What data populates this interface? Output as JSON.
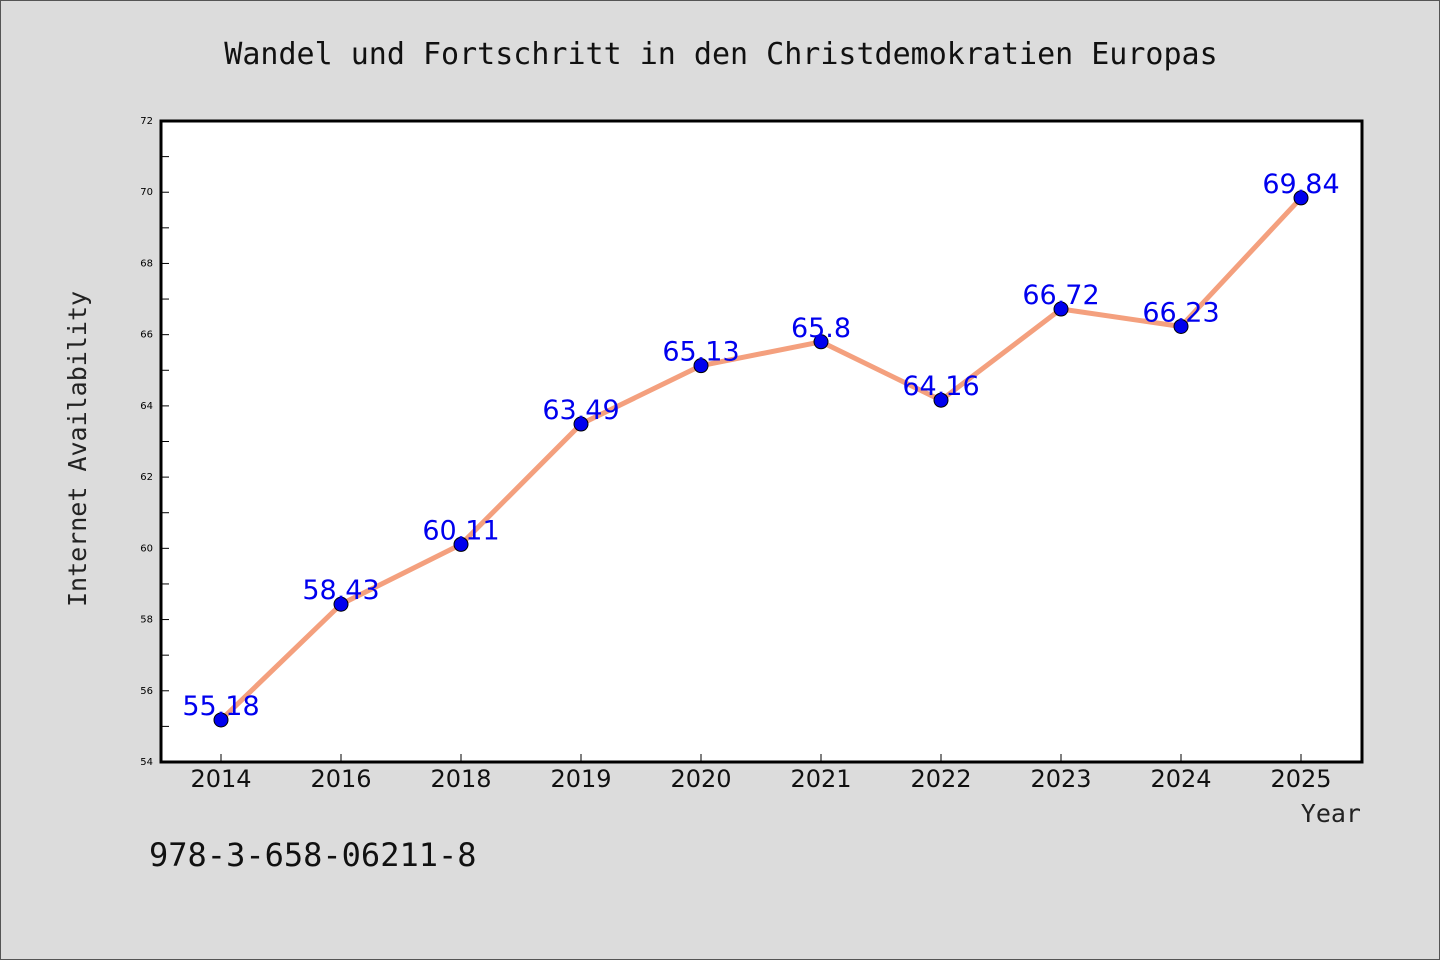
{
  "chart_data": {
    "type": "line",
    "title": "Wandel und Fortschritt in den Christdemokratien Europas",
    "xlabel": "Year",
    "ylabel": "Internet Availability",
    "categories": [
      "2014",
      "2016",
      "2018",
      "2019",
      "2020",
      "2021",
      "2022",
      "2023",
      "2024",
      "2025"
    ],
    "series": [
      {
        "values": [
          55.18,
          58.43,
          60.11,
          63.49,
          65.13,
          65.8,
          64.16,
          66.72,
          66.23,
          69.84
        ],
        "data_labels": [
          "55.18",
          "58.43",
          "60.11",
          "63.49",
          "65.13",
          "65.8",
          "64.16",
          "66.72",
          "66.23",
          "69.84"
        ]
      }
    ],
    "ylim": [
      54,
      72
    ],
    "yticks": [
      "54",
      "56",
      "58",
      "60",
      "62",
      "64",
      "66",
      "68",
      "70",
      "72"
    ],
    "grid": false,
    "legend": "none",
    "colors": {
      "line": "#f4a07e",
      "marker": "#0000ee",
      "label": "#0000ee",
      "plot_background": "#ffffff",
      "figure_background": "#dcdcdc"
    }
  },
  "annotation": {
    "isbn": "978-3-658-06211-8"
  }
}
